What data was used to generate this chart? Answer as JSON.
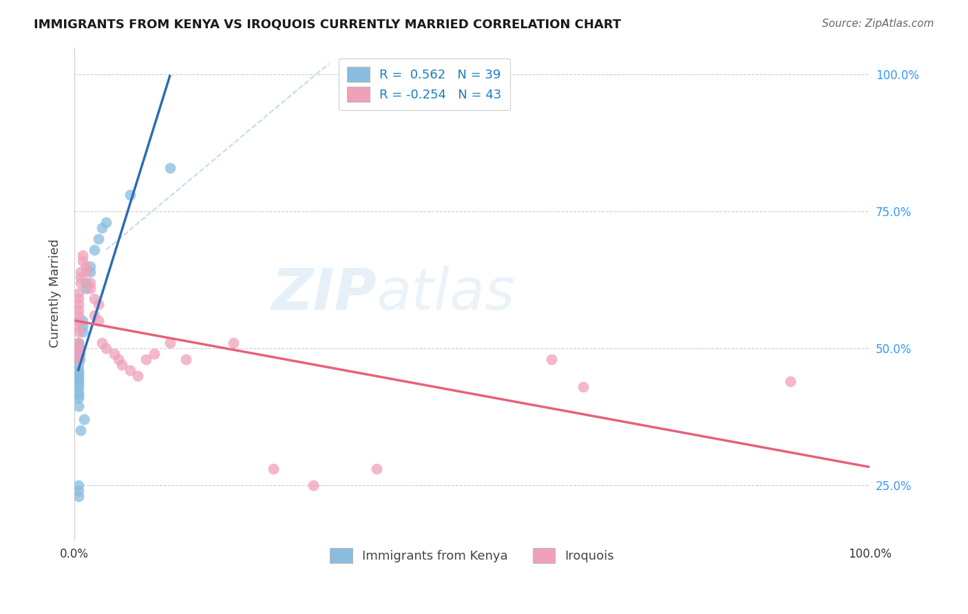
{
  "title": "IMMIGRANTS FROM KENYA VS IROQUOIS CURRENTLY MARRIED CORRELATION CHART",
  "source": "Source: ZipAtlas.com",
  "ylabel": "Currently Married",
  "legend_label1": "Immigrants from Kenya",
  "legend_label2": "Iroquois",
  "r1": 0.562,
  "n1": 39,
  "r2": -0.254,
  "n2": 43,
  "color_blue": "#89bde0",
  "color_pink": "#f0a0b8",
  "color_blue_line": "#2a6db5",
  "color_pink_line": "#e8607a",
  "color_dashed": "#b8d8f0",
  "watermark_zip": "ZIP",
  "watermark_atlas": "atlas",
  "kenya_points": [
    [
      0.005,
      0.495
    ],
    [
      0.005,
      0.51
    ],
    [
      0.005,
      0.5
    ],
    [
      0.005,
      0.505
    ],
    [
      0.005,
      0.49
    ],
    [
      0.005,
      0.48
    ],
    [
      0.005,
      0.47
    ],
    [
      0.005,
      0.46
    ],
    [
      0.005,
      0.455
    ],
    [
      0.005,
      0.45
    ],
    [
      0.005,
      0.445
    ],
    [
      0.005,
      0.44
    ],
    [
      0.005,
      0.435
    ],
    [
      0.005,
      0.43
    ],
    [
      0.005,
      0.42
    ],
    [
      0.005,
      0.415
    ],
    [
      0.005,
      0.41
    ],
    [
      0.007,
      0.5
    ],
    [
      0.007,
      0.49
    ],
    [
      0.007,
      0.48
    ],
    [
      0.01,
      0.54
    ],
    [
      0.01,
      0.53
    ],
    [
      0.01,
      0.55
    ],
    [
      0.015,
      0.62
    ],
    [
      0.015,
      0.61
    ],
    [
      0.02,
      0.65
    ],
    [
      0.02,
      0.64
    ],
    [
      0.025,
      0.68
    ],
    [
      0.03,
      0.7
    ],
    [
      0.035,
      0.72
    ],
    [
      0.04,
      0.73
    ],
    [
      0.012,
      0.37
    ],
    [
      0.008,
      0.35
    ],
    [
      0.005,
      0.25
    ],
    [
      0.005,
      0.24
    ],
    [
      0.005,
      0.23
    ],
    [
      0.07,
      0.78
    ],
    [
      0.12,
      0.83
    ],
    [
      0.005,
      0.395
    ]
  ],
  "iroquois_points": [
    [
      0.005,
      0.51
    ],
    [
      0.005,
      0.53
    ],
    [
      0.005,
      0.5
    ],
    [
      0.005,
      0.49
    ],
    [
      0.005,
      0.48
    ],
    [
      0.005,
      0.55
    ],
    [
      0.005,
      0.54
    ],
    [
      0.005,
      0.56
    ],
    [
      0.005,
      0.57
    ],
    [
      0.005,
      0.58
    ],
    [
      0.005,
      0.59
    ],
    [
      0.005,
      0.6
    ],
    [
      0.008,
      0.64
    ],
    [
      0.008,
      0.63
    ],
    [
      0.008,
      0.62
    ],
    [
      0.01,
      0.67
    ],
    [
      0.01,
      0.66
    ],
    [
      0.015,
      0.65
    ],
    [
      0.015,
      0.64
    ],
    [
      0.02,
      0.62
    ],
    [
      0.02,
      0.61
    ],
    [
      0.025,
      0.59
    ],
    [
      0.025,
      0.56
    ],
    [
      0.03,
      0.58
    ],
    [
      0.03,
      0.55
    ],
    [
      0.035,
      0.51
    ],
    [
      0.04,
      0.5
    ],
    [
      0.05,
      0.49
    ],
    [
      0.055,
      0.48
    ],
    [
      0.06,
      0.47
    ],
    [
      0.07,
      0.46
    ],
    [
      0.08,
      0.45
    ],
    [
      0.09,
      0.48
    ],
    [
      0.1,
      0.49
    ],
    [
      0.12,
      0.51
    ],
    [
      0.14,
      0.48
    ],
    [
      0.2,
      0.51
    ],
    [
      0.25,
      0.28
    ],
    [
      0.3,
      0.25
    ],
    [
      0.38,
      0.28
    ],
    [
      0.6,
      0.48
    ],
    [
      0.64,
      0.43
    ],
    [
      0.9,
      0.44
    ]
  ],
  "xlim": [
    0.0,
    1.0
  ],
  "ylim": [
    0.15,
    1.05
  ],
  "yticks": [
    0.25,
    0.5,
    0.75,
    1.0
  ],
  "ytick_labels": [
    "25.0%",
    "50.0%",
    "75.0%",
    "100.0%"
  ]
}
